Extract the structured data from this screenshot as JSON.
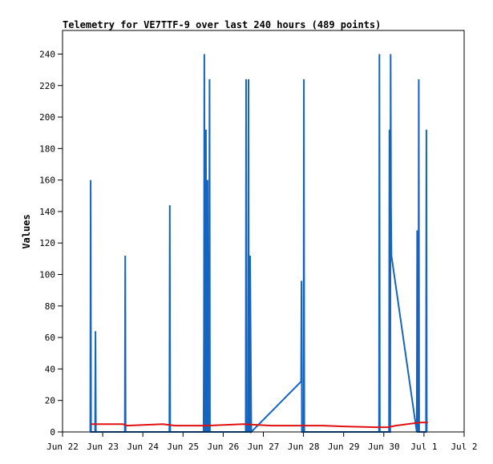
{
  "chart_data": {
    "type": "line",
    "title": "Telemetry for VE7TTF-9 over last 240 hours (489 points)",
    "xlabel": "",
    "ylabel": "Values",
    "x_tick_labels": [
      "Jun 22",
      "Jun 23",
      "Jun 24",
      "Jun 25",
      "Jun 26",
      "Jun 27",
      "Jun 28",
      "Jun 29",
      "Jun 30",
      "Jul 1",
      "Jul 2"
    ],
    "xlim": [
      0,
      10
    ],
    "y_ticks": [
      0,
      20,
      40,
      60,
      80,
      100,
      120,
      140,
      160,
      180,
      200,
      220,
      240
    ],
    "ylim": [
      0,
      255
    ],
    "grid": false,
    "legend": "none",
    "colors": {
      "blue": "#1565c0",
      "red": "#e01010",
      "black": "#000000"
    },
    "series": [
      {
        "color": "#1565c0",
        "points": [
          [
            0.69,
            0
          ],
          [
            0.7,
            160
          ],
          [
            0.71,
            0
          ],
          [
            0.81,
            0
          ],
          [
            0.82,
            64
          ],
          [
            0.83,
            0
          ],
          [
            1.55,
            0
          ],
          [
            1.56,
            112
          ],
          [
            1.57,
            0
          ],
          [
            2.66,
            0
          ],
          [
            2.67,
            144
          ],
          [
            2.68,
            0
          ],
          [
            3.51,
            0
          ],
          [
            3.52,
            64
          ],
          [
            3.53,
            240
          ],
          [
            3.54,
            0
          ],
          [
            3.56,
            0
          ],
          [
            3.57,
            192
          ],
          [
            3.58,
            0
          ],
          [
            3.6,
            0
          ],
          [
            3.61,
            160
          ],
          [
            3.62,
            0
          ],
          [
            3.64,
            0
          ],
          [
            3.65,
            64
          ],
          [
            3.66,
            224
          ],
          [
            3.67,
            0
          ],
          [
            4.56,
            0
          ],
          [
            4.57,
            224
          ],
          [
            4.58,
            0
          ],
          [
            4.62,
            0
          ],
          [
            4.63,
            224
          ],
          [
            4.64,
            0
          ],
          [
            4.66,
            0
          ],
          [
            4.67,
            112
          ],
          [
            4.7,
            0
          ],
          [
            5.94,
            32
          ],
          [
            5.95,
            96
          ],
          [
            5.96,
            0
          ],
          [
            6.0,
            0
          ],
          [
            6.01,
            224
          ],
          [
            6.02,
            0
          ],
          [
            7.88,
            0
          ],
          [
            7.89,
            240
          ],
          [
            7.9,
            0
          ],
          [
            8.13,
            0
          ],
          [
            8.14,
            192
          ],
          [
            8.15,
            0
          ],
          [
            8.16,
            0
          ],
          [
            8.17,
            240
          ],
          [
            8.18,
            144
          ],
          [
            8.19,
            112
          ],
          [
            8.82,
            0
          ],
          [
            8.83,
            128
          ],
          [
            8.84,
            0
          ],
          [
            8.86,
            0
          ],
          [
            8.87,
            224
          ],
          [
            8.88,
            0
          ],
          [
            9.05,
            0
          ],
          [
            9.06,
            192
          ],
          [
            9.07,
            0
          ]
        ]
      },
      {
        "color": "#e01010",
        "points": [
          [
            0.7,
            5
          ],
          [
            1.5,
            5
          ],
          [
            1.6,
            4
          ],
          [
            2.5,
            5
          ],
          [
            2.8,
            4
          ],
          [
            3.6,
            4
          ],
          [
            4.5,
            5
          ],
          [
            5.2,
            4
          ],
          [
            6.5,
            4
          ],
          [
            7.0,
            3.5
          ],
          [
            7.8,
            3
          ],
          [
            8.1,
            3
          ],
          [
            8.3,
            4
          ],
          [
            8.9,
            6
          ],
          [
            9.1,
            6
          ]
        ]
      },
      {
        "color": "#000000",
        "points": [
          [
            0.69,
            0
          ],
          [
            9.07,
            0
          ]
        ]
      }
    ]
  }
}
